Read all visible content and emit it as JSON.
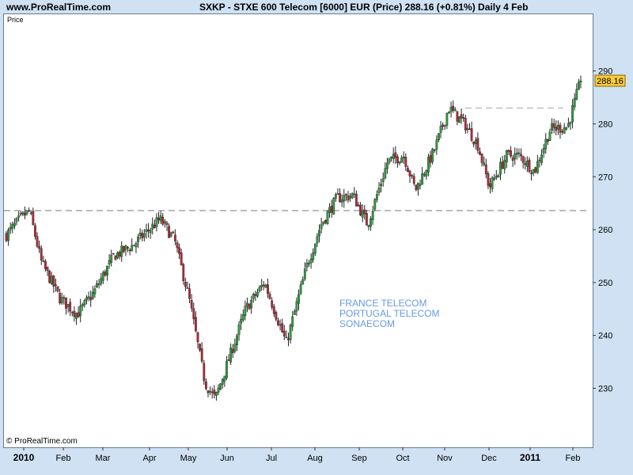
{
  "header": {
    "site": "www.ProRealTime.com",
    "title": "SXKP - STXE 600 Telecom [6000] EUR (Price)     288.16 (+0.81%)    Daily  4 Feb"
  },
  "plot": {
    "label": "Price",
    "copyright": "© ProRealTime.com"
  },
  "annotations": [
    "FRANCE TELECOM",
    "PORTUGAL TELECOM",
    "SONAECOM"
  ],
  "colors": {
    "up": "#2e9e3e",
    "down": "#b42a3a",
    "wick": "#222222",
    "price_tag": "#ffcc33"
  },
  "chart_data": {
    "type": "candlestick",
    "title": "SXKP - STXE 600 Telecom [6000] EUR (Price)",
    "last_price": "288.16",
    "change": "+0.81%",
    "interval": "Daily",
    "ylim": [
      222,
      293
    ],
    "y_ticks": [
      230,
      240,
      250,
      260,
      270,
      280,
      290
    ],
    "x_labels": [
      "2010",
      "Feb",
      "Mar",
      "Apr",
      "May",
      "Jun",
      "Jul",
      "Aug",
      "Sep",
      "Oct",
      "Nov",
      "Dec",
      "2011",
      "Feb"
    ],
    "reference_lines": [
      263.6,
      283.0
    ],
    "close_path": [
      [
        "2010-01-04",
        259.0
      ],
      [
        "2010-01-15",
        262.5
      ],
      [
        "2010-01-20",
        263.5
      ],
      [
        "2010-01-28",
        254.0
      ],
      [
        "2010-02-10",
        247.0
      ],
      [
        "2010-02-22",
        244.0
      ],
      [
        "2010-03-05",
        248.0
      ],
      [
        "2010-03-19",
        255.0
      ],
      [
        "2010-04-01",
        257.0
      ],
      [
        "2010-04-20",
        262.0
      ],
      [
        "2010-04-30",
        258.0
      ],
      [
        "2010-05-10",
        247.0
      ],
      [
        "2010-05-21",
        231.0
      ],
      [
        "2010-05-28",
        228.0
      ],
      [
        "2010-06-07",
        236.0
      ],
      [
        "2010-06-18",
        245.0
      ],
      [
        "2010-07-01",
        250.0
      ],
      [
        "2010-07-16",
        238.5
      ],
      [
        "2010-07-30",
        253.0
      ],
      [
        "2010-08-09",
        261.0
      ],
      [
        "2010-08-20",
        266.0
      ],
      [
        "2010-08-31",
        266.5
      ],
      [
        "2010-09-10",
        261.0
      ],
      [
        "2010-09-24",
        273.0
      ],
      [
        "2010-10-05",
        274.0
      ],
      [
        "2010-10-13",
        267.5
      ],
      [
        "2010-10-26",
        275.0
      ],
      [
        "2010-11-05",
        283.0
      ],
      [
        "2010-11-16",
        280.0
      ],
      [
        "2010-11-25",
        276.0
      ],
      [
        "2010-12-03",
        268.0
      ],
      [
        "2010-12-15",
        274.0
      ],
      [
        "2010-12-24",
        274.0
      ],
      [
        "2011-01-03",
        271.0
      ],
      [
        "2011-01-14",
        279.0
      ],
      [
        "2011-01-26",
        279.5
      ],
      [
        "2011-02-04",
        288.2
      ]
    ]
  }
}
